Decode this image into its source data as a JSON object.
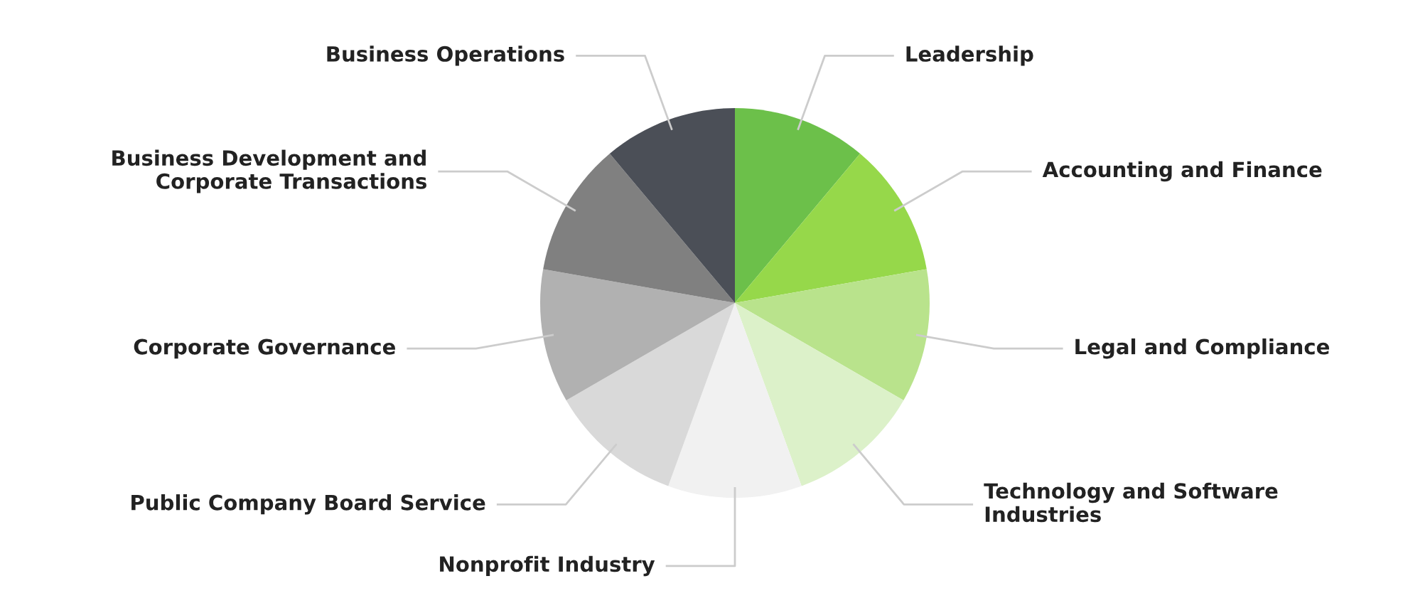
{
  "chart_data": {
    "type": "pie",
    "categories": [
      "Leadership",
      "Accounting and Finance",
      "Legal and Compliance",
      "Technology and Software\nIndustries",
      "Nonprofit Industry",
      "Public Company Board Service",
      "Corporate Governance",
      "Business Development and\nCorporate Transactions",
      "Business Operations"
    ],
    "values": [
      11.11,
      11.11,
      11.11,
      11.11,
      11.12,
      11.11,
      11.11,
      11.11,
      11.11
    ],
    "colors": [
      "#6cc04a",
      "#96d84a",
      "#b9e38c",
      "#dcf1c9",
      "#f1f1f1",
      "#d9d9d9",
      "#b1b1b1",
      "#808080",
      "#4b4f57"
    ],
    "legend": false
  }
}
